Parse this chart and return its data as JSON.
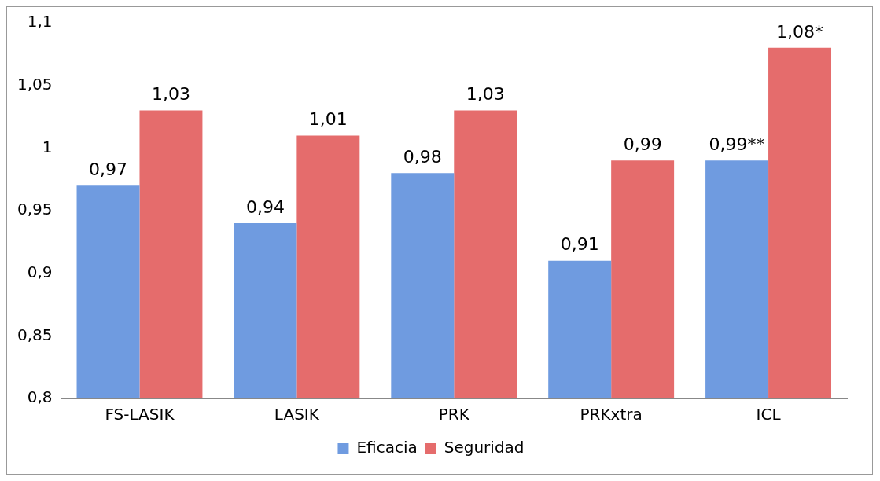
{
  "chart_data": {
    "type": "bar",
    "categories": [
      "FS-LASIK",
      "LASIK",
      "PRK",
      "PRKxtra",
      "ICL"
    ],
    "series": [
      {
        "name": "Eficacia",
        "color": "#6f9be0",
        "values": [
          0.97,
          0.94,
          0.98,
          0.91,
          0.99
        ],
        "value_labels": [
          "0,97",
          "0,94",
          "0,98",
          "0,91",
          "0,99**"
        ]
      },
      {
        "name": "Seguridad",
        "color": "#e56c6c",
        "values": [
          1.03,
          1.01,
          1.03,
          0.99,
          1.08
        ],
        "value_labels": [
          "1,03",
          "1,01",
          "1,03",
          "0,99",
          "1,08*"
        ]
      }
    ],
    "ylim": [
      0.8,
      1.1
    ],
    "yticks": [
      {
        "value": 0.8,
        "label": "0,8"
      },
      {
        "value": 0.85,
        "label": "0,85"
      },
      {
        "value": 0.9,
        "label": "0,9"
      },
      {
        "value": 0.95,
        "label": "0,95"
      },
      {
        "value": 1,
        "label": "1"
      },
      {
        "value": 1.05,
        "label": "1,05"
      },
      {
        "value": 1.1,
        "label": "1,1"
      }
    ],
    "grid": false,
    "legend": "bottom"
  }
}
